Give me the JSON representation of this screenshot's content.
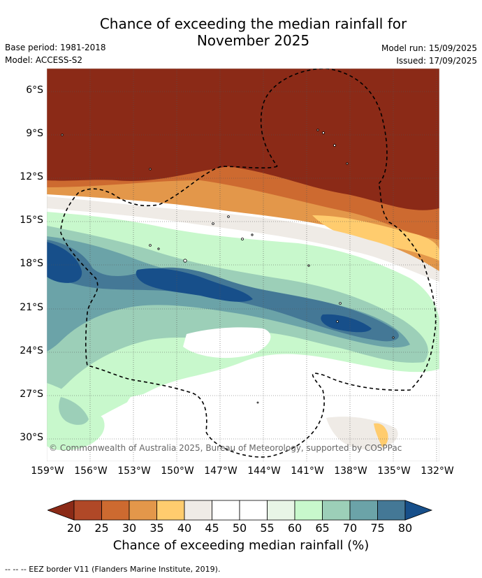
{
  "title_line1": "Chance of exceeding the median rainfall for",
  "title_line2": "November 2025",
  "meta_left": [
    "Base period: 1981-2018",
    "Model: ACCESS-S2"
  ],
  "meta_right": [
    "Model run: 15/09/2025",
    "Issued: 17/09/2025"
  ],
  "y_ticks": [
    "6°S",
    "9°S",
    "12°S",
    "15°S",
    "18°S",
    "21°S",
    "24°S",
    "27°S",
    "30°S"
  ],
  "x_ticks": [
    "159°W",
    "156°W",
    "153°W",
    "150°W",
    "147°W",
    "144°W",
    "141°W",
    "138°W",
    "135°W",
    "132°W"
  ],
  "copyright": "© Commonwealth of Australia 2025, Bureau of Meteorology, supported by COSPPac",
  "colorbar": {
    "labels": [
      "20",
      "25",
      "30",
      "35",
      "40",
      "45",
      "50",
      "55",
      "60",
      "65",
      "70",
      "75",
      "80"
    ],
    "colors": [
      "#8b2a17",
      "#b04827",
      "#cd6a30",
      "#e3974a",
      "#ffcc6e",
      "#efebe6",
      "#ffffff",
      "#ffffff",
      "#e8f5e6",
      "#c8f8cc",
      "#9ccfb8",
      "#6ba3a8",
      "#447896",
      "#174f8a"
    ],
    "title": "Chance of exceeding median rainfall (%)"
  },
  "footer": "--  --  -- EEZ border V11 (Flanders Marine Institute, 2019)."
}
